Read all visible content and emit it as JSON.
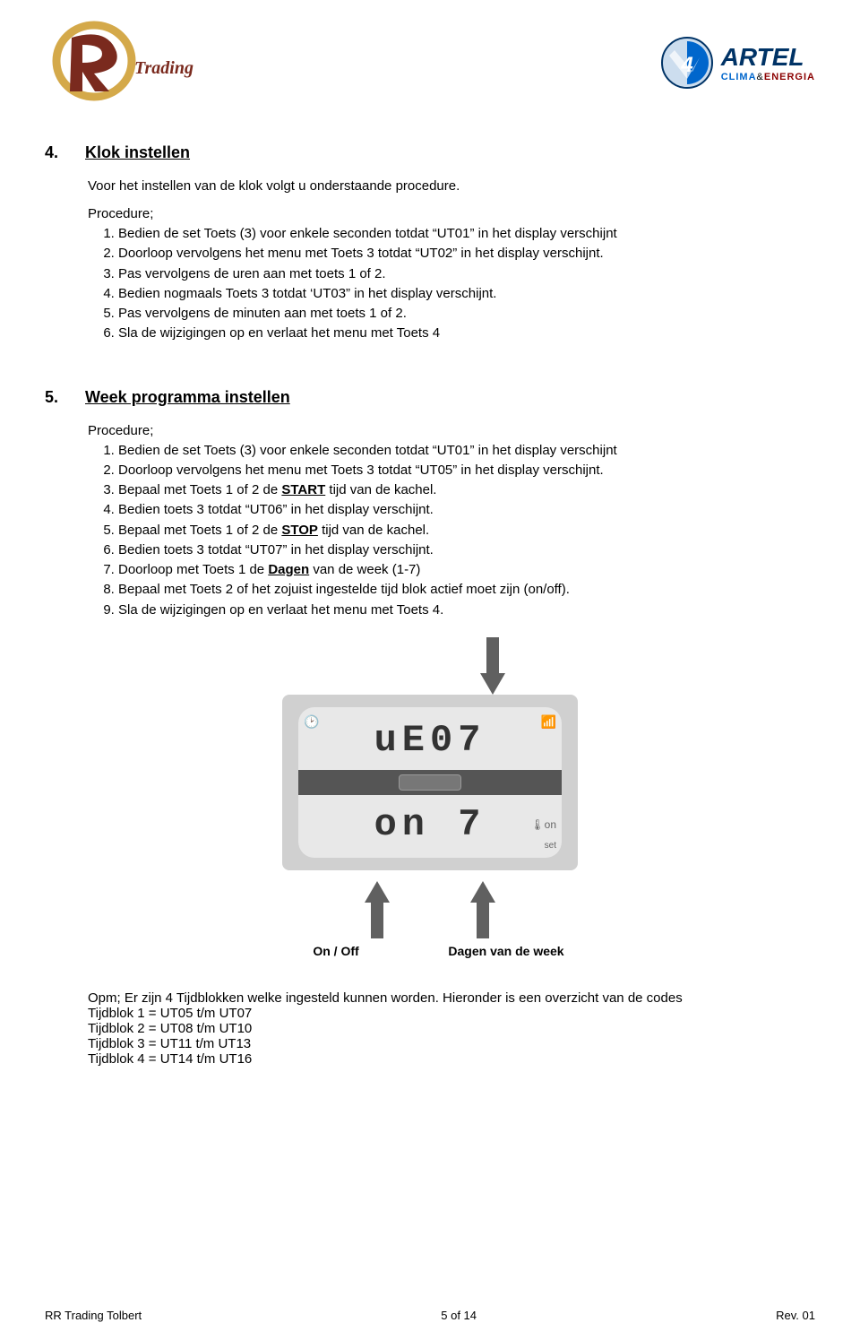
{
  "header": {
    "left_logo_text": "Trading",
    "right_logo_text": "ARTEL",
    "right_logo_sub1": "CLIMA",
    "right_logo_amp": "&",
    "right_logo_sub2": "ENERGIA"
  },
  "section4": {
    "num": "4.",
    "title": "Klok instellen",
    "intro": "Voor het instellen van de klok volgt u onderstaande procedure.",
    "procedure_label": "Procedure;",
    "steps": [
      "Bedien de set Toets (3) voor enkele seconden totdat “UT01” in het display verschijnt",
      "Doorloop vervolgens het menu  met Toets 3 totdat “UT02” in het display verschijnt.",
      "Pas vervolgens de uren aan met toets 1 of 2.",
      "Bedien nogmaals Toets 3 totdat ‘UT03” in het display verschijnt.",
      "Pas vervolgens de minuten aan met toets 1 of 2.",
      "Sla de wijzigingen op en verlaat het menu met Toets 4"
    ]
  },
  "section5": {
    "num": "5.",
    "title": "Week programma instellen",
    "procedure_label": "Procedure;",
    "steps": [
      {
        "pre": "Bedien de set Toets (3) voor enkele seconden totdat “UT01” in het display verschijnt"
      },
      {
        "pre": "Doorloop vervolgens het menu  met Toets 3 totdat “UT05” in het display verschijnt."
      },
      {
        "pre": "Bepaal met Toets 1 of 2  de ",
        "bold": "START",
        "post": " tijd van de kachel."
      },
      {
        "pre": "Bedien toets 3 totdat “UT06” in het display verschijnt."
      },
      {
        "pre": "Bepaal met Toets 1 of 2  de ",
        "bold": "STOP",
        "post": " tijd van de kachel."
      },
      {
        "pre": "Bedien toets 3 totdat “UT07” in het display verschijnt."
      },
      {
        "pre": "Doorloop met Toets 1 de ",
        "bold": "Dagen",
        "post": " van de week (1-7)"
      },
      {
        "pre": "Bepaal met Toets 2 of het zojuist ingestelde tijd blok actief moet zijn (on/off)."
      },
      {
        "pre": "Sla de wijzigingen op en verlaat het menu met Toets 4."
      }
    ]
  },
  "display": {
    "top_row": "uE07",
    "bottom_row": "on   7",
    "label_left": "On / Off",
    "label_right": "Dagen van de week"
  },
  "note": {
    "line": "Opm; Er zijn 4 Tijdblokken welke ingesteld kunnen worden. Hieronder is een overzicht van de codes",
    "blocks": [
      "Tijdblok 1 = UT05 t/m UT07",
      "Tijdblok 2 = UT08 t/m UT10",
      "Tijdblok 3 = UT11 t/m UT13",
      "Tijdblok 4 = UT14 t/m UT16"
    ]
  },
  "footer": {
    "left": "RR Trading  Tolbert",
    "center": "5 of 14",
    "right": "Rev. 01"
  }
}
